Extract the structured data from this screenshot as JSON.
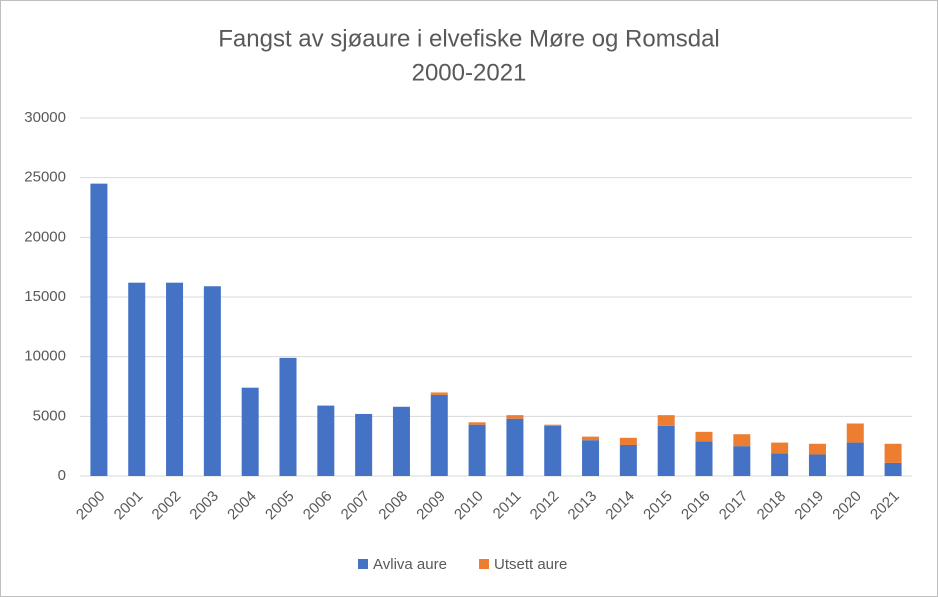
{
  "chart_data": {
    "type": "stacked_bar",
    "title": [
      "Fangst av sjøaure i elvefiske Møre og Romsdal",
      "2000-2021"
    ],
    "categories": [
      "2000",
      "2001",
      "2002",
      "2003",
      "2004",
      "2005",
      "2006",
      "2007",
      "2008",
      "2009",
      "2010",
      "2011",
      "2012",
      "2013",
      "2014",
      "2015",
      "2016",
      "2017",
      "2018",
      "2019",
      "2020",
      "2021"
    ],
    "series": [
      {
        "name": "Avliva aure",
        "color": "#4472c4",
        "values": [
          24500,
          16200,
          16200,
          15900,
          7400,
          9900,
          5900,
          5200,
          5800,
          6800,
          4300,
          4800,
          4200,
          3000,
          2600,
          4200,
          2900,
          2500,
          1900,
          1800,
          2800,
          1100
        ]
      },
      {
        "name": "Utsett aure",
        "color": "#ed7d31",
        "values": [
          0,
          0,
          0,
          0,
          0,
          0,
          0,
          0,
          0,
          200,
          200,
          300,
          100,
          300,
          600,
          900,
          800,
          1000,
          900,
          900,
          1600,
          1600
        ]
      }
    ],
    "ylim": [
      0,
      30000
    ],
    "yticks": [
      0,
      5000,
      10000,
      15000,
      20000,
      25000,
      30000
    ],
    "grid": true,
    "legend": "bottom"
  }
}
